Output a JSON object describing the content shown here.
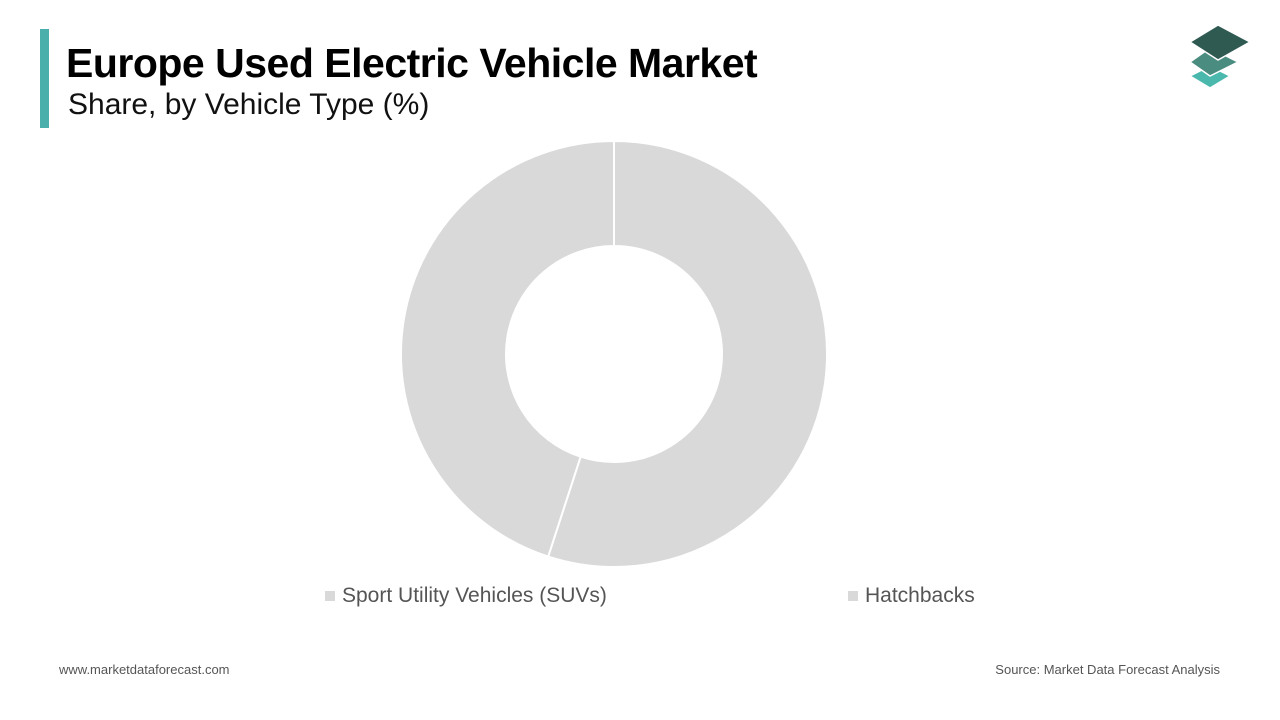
{
  "header": {
    "title": "Europe Used Electric Vehicle Market",
    "subtitle": "Share, by Vehicle Type (%)",
    "accent_color": "#4aaeaa"
  },
  "logo": {
    "icon": "stacked-layers-icon",
    "colors": [
      "#2f5a52",
      "#4a8c80",
      "#4ab8ad"
    ]
  },
  "chart_data": {
    "type": "pie",
    "donut": true,
    "title": "",
    "categories": [
      "Sport Utility Vehicles (SUVs)",
      "Hatchbacks"
    ],
    "values": [
      55,
      45
    ],
    "colors": [
      "#d9d9d9",
      "#d9d9d9"
    ],
    "legend": "bottom"
  },
  "footer": {
    "website": "www.marketdataforecast.com",
    "source": "Source: Market Data Forecast Analysis"
  }
}
